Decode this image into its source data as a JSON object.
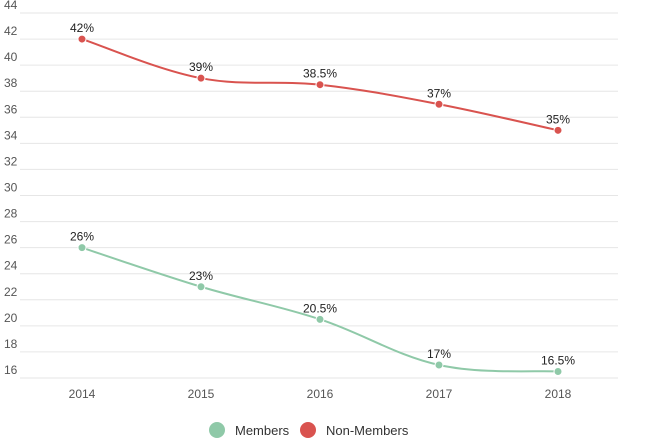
{
  "chart_data": {
    "type": "line",
    "categories": [
      "2014",
      "2015",
      "2016",
      "2017",
      "2018"
    ],
    "series": [
      {
        "name": "Members",
        "color": "#8fc9a8",
        "values": [
          26,
          23,
          20.5,
          17,
          16.5
        ],
        "labels": [
          "26%",
          "23%",
          "20.5%",
          "17%",
          "16.5%"
        ]
      },
      {
        "name": "Non-Members",
        "color": "#d9534f",
        "values": [
          42,
          39,
          38.5,
          37,
          35
        ],
        "labels": [
          "42%",
          "39%",
          "38.5%",
          "37%",
          "35%"
        ]
      }
    ],
    "yticks": [
      "16",
      "18",
      "20",
      "22",
      "24",
      "26",
      "28",
      "30",
      "32",
      "34",
      "36",
      "38",
      "40",
      "42",
      "44"
    ],
    "ylim": [
      16,
      44
    ],
    "grid": true,
    "legend_position": "bottom-center",
    "title": "",
    "xlabel": "",
    "ylabel": ""
  }
}
